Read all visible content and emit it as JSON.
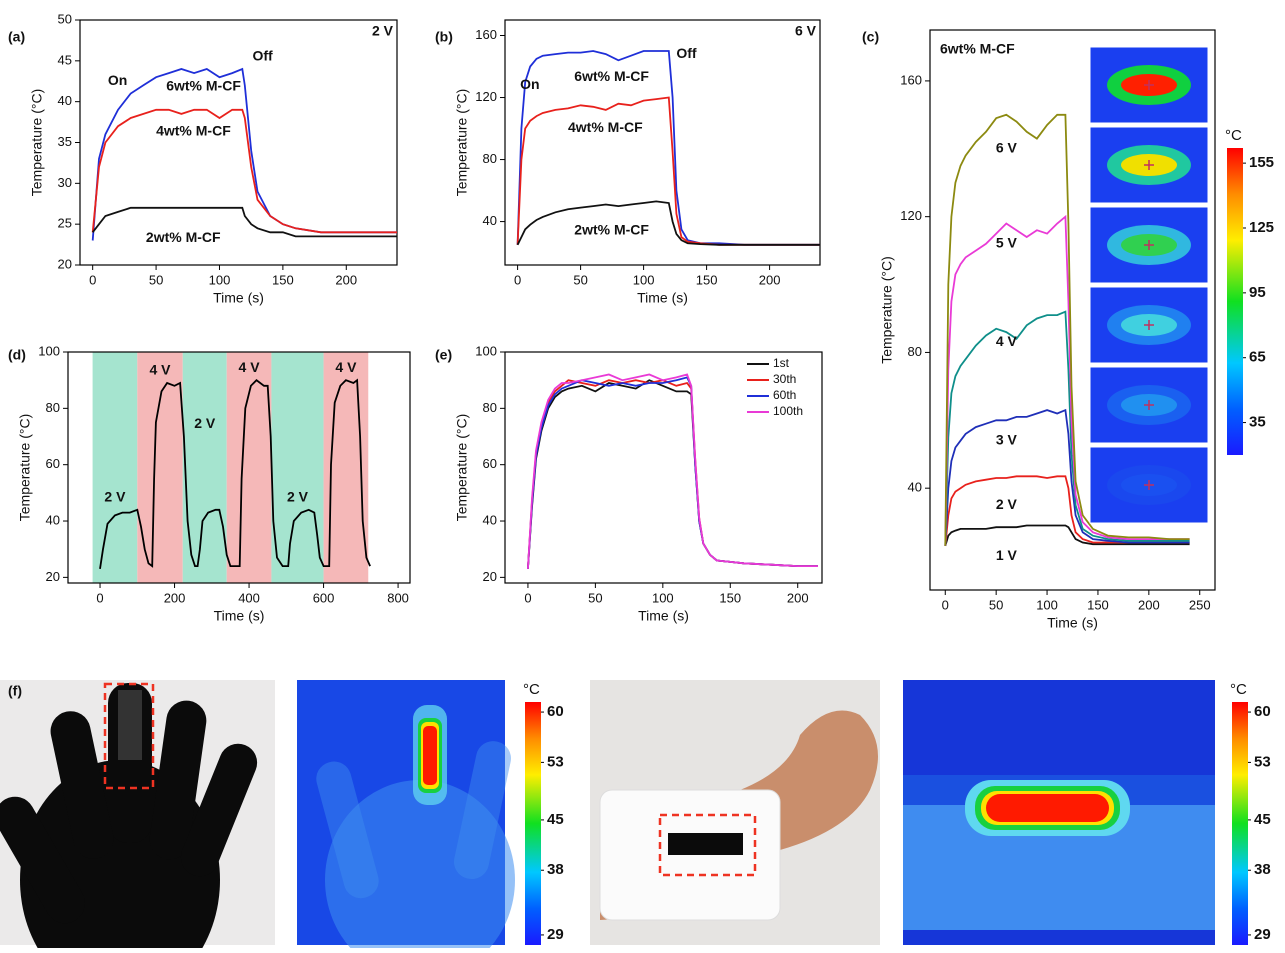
{
  "chart_data": [
    {
      "type": "line",
      "panel": "(a)",
      "xlabel": "Time (s)",
      "ylabel": "Temperature (°C)",
      "xlim": [
        -10,
        240
      ],
      "xticks": [
        0,
        50,
        100,
        150,
        200
      ],
      "ylim": [
        20,
        50
      ],
      "yticks": [
        20,
        25,
        30,
        35,
        40,
        45,
        50
      ],
      "annotations": [
        "On",
        "Off",
        "2 V"
      ],
      "x": [
        0,
        5,
        10,
        20,
        30,
        40,
        50,
        60,
        70,
        80,
        90,
        100,
        110,
        118,
        120,
        125,
        130,
        140,
        150,
        160,
        180,
        200,
        220,
        240
      ],
      "series": [
        {
          "name": "6wt% M-CF",
          "color": "#1f2fd8",
          "values": [
            23,
            33,
            36,
            39,
            41,
            42,
            43,
            43.5,
            44,
            43.5,
            44,
            43,
            43.5,
            44,
            42,
            34,
            29,
            26,
            25,
            24.5,
            24,
            24,
            24,
            24
          ]
        },
        {
          "name": "4wt% M-CF",
          "color": "#e8211c",
          "values": [
            24,
            32,
            35,
            37,
            38,
            38.5,
            39,
            39,
            38.5,
            39,
            39,
            38,
            39,
            39,
            38,
            32,
            28,
            26,
            25,
            24.5,
            24,
            24,
            24,
            24
          ]
        },
        {
          "name": "2wt% M-CF",
          "color": "#111111",
          "values": [
            24,
            25,
            26,
            26.5,
            27,
            27,
            27,
            27,
            27,
            27,
            27,
            27,
            27,
            27,
            26,
            25,
            24.5,
            24,
            24,
            23.5,
            23.5,
            23.5,
            23.5,
            23.5
          ]
        }
      ]
    },
    {
      "type": "line",
      "panel": "(b)",
      "xlabel": "Time (s)",
      "ylabel": "Temperature (°C)",
      "xlim": [
        -10,
        240
      ],
      "xticks": [
        0,
        50,
        100,
        150,
        200
      ],
      "ylim": [
        12,
        170
      ],
      "yticks": [
        40,
        80,
        120,
        160
      ],
      "annotations": [
        "On",
        "Off",
        "6 V"
      ],
      "x": [
        0,
        3,
        6,
        10,
        15,
        20,
        30,
        40,
        50,
        60,
        70,
        80,
        90,
        100,
        110,
        120,
        123,
        126,
        130,
        135,
        145,
        160,
        180,
        200,
        220,
        240
      ],
      "series": [
        {
          "name": "6wt% M-CF",
          "color": "#1f2fd8",
          "values": [
            25,
            100,
            130,
            140,
            145,
            147,
            148,
            149,
            149,
            150,
            148,
            144,
            147,
            150,
            150,
            150,
            120,
            60,
            35,
            28,
            26,
            26,
            25,
            25,
            25,
            25
          ]
        },
        {
          "name": "4wt% M-CF",
          "color": "#e8211c",
          "values": [
            25,
            80,
            100,
            105,
            108,
            110,
            112,
            113,
            115,
            114,
            112,
            116,
            115,
            118,
            119,
            120,
            85,
            45,
            30,
            27,
            26,
            25,
            25,
            25,
            25,
            25
          ]
        },
        {
          "name": "2wt% M-CF",
          "color": "#111111",
          "values": [
            25,
            30,
            35,
            38,
            41,
            43,
            46,
            48,
            49,
            50,
            51,
            50,
            51,
            52,
            53,
            52,
            40,
            32,
            28,
            26,
            25.5,
            25,
            25,
            25,
            25,
            25
          ]
        }
      ]
    },
    {
      "type": "line",
      "panel": "(c)",
      "xlabel": "Time (s)",
      "ylabel": "Temperature (°C)",
      "xlim": [
        -15,
        265
      ],
      "xticks": [
        0,
        50,
        100,
        150,
        200,
        250
      ],
      "ylim": [
        10,
        175
      ],
      "yticks": [
        40,
        80,
        120,
        160
      ],
      "annotations": [
        "6wt% M-CF"
      ],
      "colorbar": {
        "unit": "°C",
        "clim": [
          20,
          162
        ],
        "ticks": [
          155,
          125,
          95,
          65,
          35
        ]
      },
      "x": [
        0,
        3,
        6,
        10,
        15,
        20,
        30,
        40,
        50,
        60,
        70,
        80,
        90,
        100,
        110,
        118,
        121,
        124,
        128,
        135,
        145,
        160,
        180,
        200,
        220,
        240
      ],
      "series": [
        {
          "name": "1 V",
          "color": "#111111",
          "values": [
            23,
            26,
            27,
            27.5,
            28,
            28,
            28,
            28,
            28.5,
            28.5,
            28.5,
            29,
            29,
            29,
            29,
            29,
            28.5,
            27,
            25,
            24,
            23.5,
            23.5,
            23.5,
            23.5,
            23.5,
            23.5
          ]
        },
        {
          "name": "2 V",
          "color": "#e8211c",
          "values": [
            23,
            32,
            37,
            39,
            40,
            41,
            42,
            42.5,
            43,
            43,
            43.5,
            43.5,
            43.5,
            43,
            43.5,
            43.5,
            40,
            32,
            27,
            25,
            24,
            24,
            24,
            24,
            24,
            24
          ]
        },
        {
          "name": "3 V",
          "color": "#1f2fb8",
          "values": [
            23,
            40,
            48,
            52,
            54,
            56,
            58,
            59,
            60,
            60,
            61,
            61,
            62,
            63,
            62,
            63,
            56,
            42,
            32,
            27,
            25,
            24.5,
            24,
            24,
            24,
            24
          ]
        },
        {
          "name": "4 V",
          "color": "#0f8f8a",
          "values": [
            23,
            55,
            68,
            73,
            76,
            78,
            82,
            85,
            87,
            86,
            84,
            88,
            90,
            91,
            91,
            92,
            75,
            50,
            35,
            28,
            26,
            25,
            24.5,
            24.5,
            24.5,
            24.5
          ]
        },
        {
          "name": "5 V",
          "color": "#e93ad6",
          "values": [
            23,
            75,
            95,
            103,
            106,
            108,
            110,
            112,
            115,
            118,
            116,
            114,
            116,
            115,
            118,
            120,
            95,
            60,
            38,
            30,
            27,
            25.5,
            25,
            25,
            25,
            25
          ]
        },
        {
          "name": "6 V",
          "color": "#8c8a10",
          "values": [
            23,
            100,
            120,
            130,
            135,
            138,
            142,
            145,
            149,
            150,
            148,
            145,
            143,
            147,
            150,
            150,
            118,
            70,
            42,
            32,
            28,
            26,
            25.5,
            25.5,
            25,
            25
          ]
        }
      ]
    },
    {
      "type": "line",
      "panel": "(d)",
      "xlabel": "Time (s)",
      "ylabel": "Temperature (°C)",
      "xlim": [
        -86,
        832
      ],
      "xticks": [
        0,
        200,
        400,
        600,
        800
      ],
      "ylim": [
        18,
        100
      ],
      "yticks": [
        20,
        40,
        60,
        80,
        100
      ],
      "regions": [
        {
          "x": [
            -20,
            100
          ],
          "color": "#a5e4cf",
          "label": "2 V"
        },
        {
          "x": [
            100,
            222
          ],
          "color": "#f5b8b8",
          "label": "4 V"
        },
        {
          "x": [
            222,
            340
          ],
          "color": "#a5e4cf",
          "label": "2 V"
        },
        {
          "x": [
            340,
            460
          ],
          "color": "#f5b8b8",
          "label": "4 V"
        },
        {
          "x": [
            460,
            600
          ],
          "color": "#a5e4cf",
          "label": "2 V"
        },
        {
          "x": [
            600,
            720
          ],
          "color": "#f5b8b8",
          "label": "4 V"
        }
      ],
      "x": [
        0,
        8,
        20,
        40,
        60,
        80,
        100,
        110,
        120,
        130,
        140,
        145,
        150,
        165,
        180,
        200,
        215,
        225,
        235,
        245,
        255,
        262,
        268,
        275,
        290,
        310,
        320,
        330,
        340,
        350,
        375,
        380,
        390,
        405,
        420,
        440,
        450,
        458,
        465,
        475,
        490,
        505,
        510,
        520,
        540,
        560,
        575,
        583,
        590,
        600,
        615,
        620,
        630,
        645,
        660,
        680,
        690,
        698,
        705,
        715,
        725
      ],
      "series": [
        {
          "color": "#000000",
          "values": [
            23,
            30,
            39,
            42,
            43,
            43,
            44,
            38,
            30,
            25,
            24,
            55,
            75,
            86,
            89,
            88,
            89,
            70,
            40,
            28,
            24,
            24,
            30,
            40,
            43,
            44,
            44,
            38,
            28,
            24,
            24,
            55,
            80,
            88,
            90,
            88,
            88,
            70,
            40,
            27,
            24,
            24,
            32,
            40,
            43,
            44,
            43,
            35,
            27,
            24,
            24,
            60,
            82,
            88,
            90,
            89,
            90,
            70,
            40,
            27,
            24
          ]
        }
      ]
    },
    {
      "type": "line",
      "panel": "(e)",
      "xlabel": "Time (s)",
      "ylabel": "Temperature (°C)",
      "legend": "top-right",
      "xlim": [
        -17,
        218
      ],
      "xticks": [
        0,
        50,
        100,
        150,
        200
      ],
      "ylim": [
        18,
        100
      ],
      "yticks": [
        20,
        40,
        60,
        80,
        100
      ],
      "x": [
        0,
        3,
        6,
        10,
        15,
        20,
        25,
        30,
        40,
        50,
        60,
        70,
        80,
        90,
        100,
        110,
        118,
        121,
        124,
        127,
        130,
        135,
        140,
        150,
        160,
        180,
        200,
        215
      ],
      "series": [
        {
          "name": "1st",
          "color": "#111111",
          "values": [
            23,
            45,
            62,
            72,
            80,
            84,
            86,
            87,
            88,
            86,
            89,
            88,
            87,
            90,
            88,
            86,
            86,
            85,
            60,
            40,
            32,
            28,
            26,
            25.5,
            25,
            24.5,
            24,
            24
          ]
        },
        {
          "name": "30th",
          "color": "#e8211c",
          "values": [
            23,
            47,
            64,
            74,
            82,
            86,
            88,
            90,
            89,
            88,
            90,
            89,
            90,
            89,
            90,
            88,
            89,
            87,
            62,
            41,
            32,
            28,
            26,
            25.5,
            25,
            24.5,
            24,
            24
          ]
        },
        {
          "name": "60th",
          "color": "#1f2fd8",
          "values": [
            23,
            46,
            63,
            73,
            81,
            85,
            87,
            88,
            90,
            89,
            88,
            89,
            88,
            89,
            89,
            90,
            91,
            88,
            60,
            40,
            32,
            28,
            26,
            25.5,
            25,
            24.5,
            24,
            24
          ]
        },
        {
          "name": "100th",
          "color": "#e93ad6",
          "values": [
            23,
            48,
            65,
            75,
            83,
            87,
            89,
            89,
            90,
            91,
            92,
            90,
            91,
            92,
            90,
            91,
            92,
            88,
            62,
            41,
            32,
            28,
            26,
            25.5,
            25,
            24.5,
            24,
            24
          ]
        }
      ]
    }
  ],
  "photos": {
    "panel": "(f)",
    "colorbars": [
      {
        "unit": "°C",
        "clim": [
          27.6,
          61.4
        ],
        "ticks": [
          60,
          53,
          45,
          38,
          29
        ]
      },
      {
        "unit": "°C",
        "clim": [
          27.6,
          61.4
        ],
        "ticks": [
          60,
          53,
          45,
          38,
          29
        ]
      }
    ]
  }
}
